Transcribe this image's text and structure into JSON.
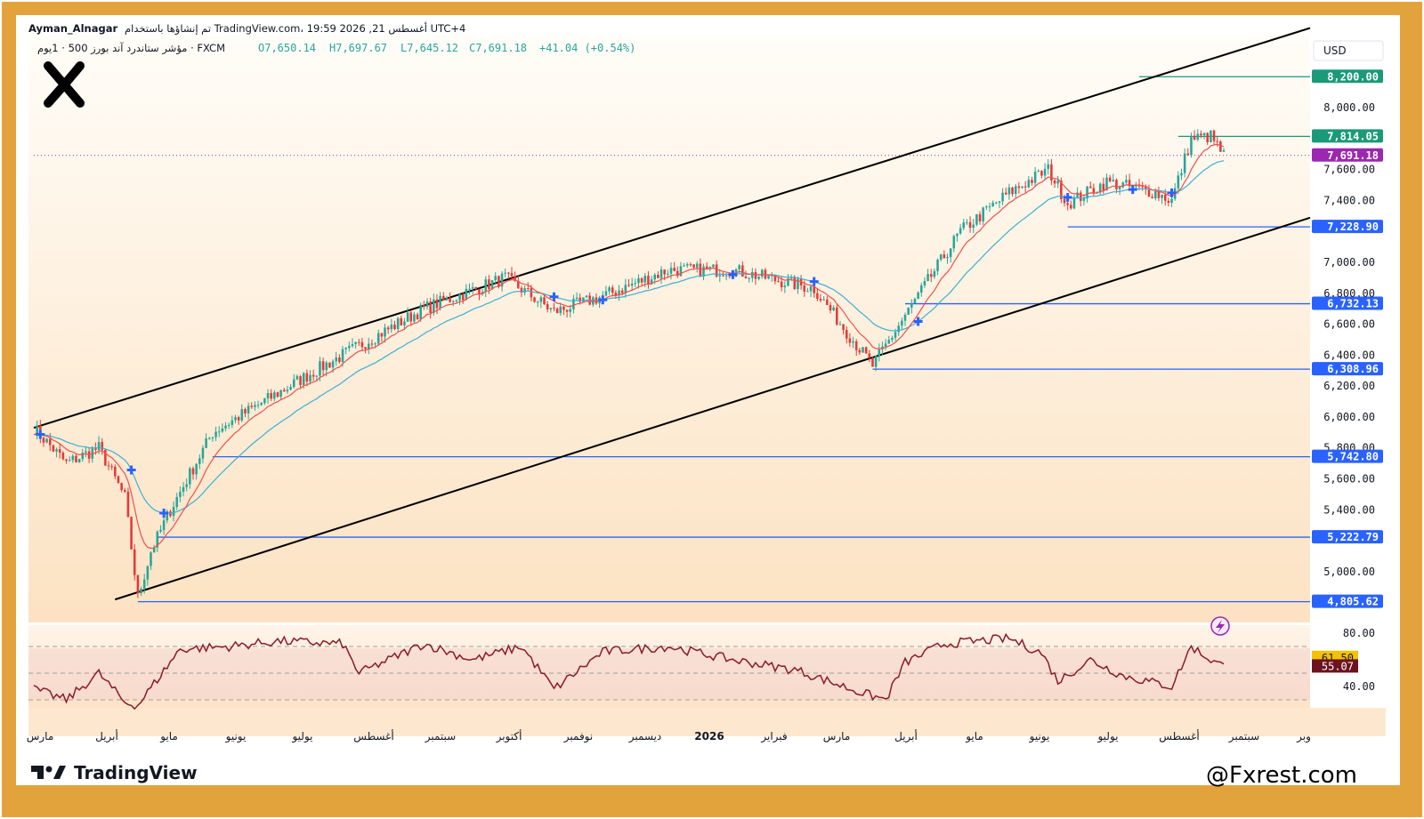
{
  "header": {
    "author": "Ayman_Alnagar",
    "published": "تم إنشاؤها باستخدام TradingView.com، 19:59 2026 ,21 أغسطس UTC+4",
    "symbol": "مؤشر ستاندرد آند بورز 500 · 1يوم · FXCM",
    "ohlc": {
      "open": "O7,650.14",
      "high": "H7,697.67",
      "low": "L7,645.12",
      "close": "C7,691.18",
      "change": "+41.04 (+0.54%)"
    }
  },
  "currency": "USD",
  "brand": {
    "tradingview": "TradingView",
    "watermark": "@Fxrest.com"
  },
  "colors": {
    "frame": "#e3a33c",
    "bull": "#26a69a",
    "bear": "#e53935",
    "ema_fast": "#f0504a",
    "ema_slow": "#3bb0d4",
    "level_line": "#2962ff",
    "level_green": "#1a9a78",
    "current_price": "#9c27b0",
    "rsi": "#8b1a2b",
    "rsi_value_bg": "#6b1420",
    "rsi_ma_bg": "#f2c200"
  },
  "chart_data": {
    "type": "candlestick",
    "title": "مؤشر ستاندرد آند بورز 500 · 1يوم · FXCM",
    "price_axis": {
      "ticks": [
        "8,000.00",
        "7,600.00",
        "7,400.00",
        "7,000.00",
        "6,800.00",
        "6,600.00",
        "6,400.00",
        "6,200.00",
        "6,000.00",
        "5,800.00",
        "5,600.00",
        "5,400.00",
        "5,000.00"
      ],
      "ylim": [
        4700,
        8420
      ]
    },
    "levels": [
      {
        "label": "8,200.00",
        "value": 8200,
        "style": "green"
      },
      {
        "label": "7,814.05",
        "value": 7814.05,
        "style": "green"
      },
      {
        "label": "7,691.18",
        "value": 7691.18,
        "style": "current"
      },
      {
        "label": "7,228.90",
        "value": 7228.9,
        "style": "blue"
      },
      {
        "label": "6,732.13",
        "value": 6732.13,
        "style": "blue"
      },
      {
        "label": "6,308.96",
        "value": 6308.96,
        "style": "blue"
      },
      {
        "label": "5,742.80",
        "value": 5742.8,
        "style": "blue"
      },
      {
        "label": "5,222.79",
        "value": 5222.79,
        "style": "blue"
      },
      {
        "label": "4,805.62",
        "value": 4805.62,
        "style": "blue"
      }
    ],
    "price_path_knots": [
      [
        0,
        5930
      ],
      [
        10,
        5700
      ],
      [
        20,
        5800
      ],
      [
        28,
        5480
      ],
      [
        32,
        4830
      ],
      [
        36,
        5130
      ],
      [
        42,
        5400
      ],
      [
        55,
        5900
      ],
      [
        85,
        6280
      ],
      [
        120,
        6700
      ],
      [
        145,
        6900
      ],
      [
        160,
        6680
      ],
      [
        175,
        6780
      ],
      [
        195,
        6950
      ],
      [
        215,
        6950
      ],
      [
        240,
        6830
      ],
      [
        258,
        6330
      ],
      [
        270,
        6720
      ],
      [
        285,
        7200
      ],
      [
        300,
        7450
      ],
      [
        312,
        7600
      ],
      [
        318,
        7380
      ],
      [
        330,
        7520
      ],
      [
        345,
        7450
      ],
      [
        350,
        7400
      ],
      [
        356,
        7800
      ],
      [
        362,
        7814
      ],
      [
        366,
        7691
      ]
    ],
    "channel": {
      "upper": [
        [
          0,
          5930
        ],
        [
          366,
          8340
        ]
      ],
      "lower": [
        [
          25,
          4820
        ],
        [
          366,
          7110
        ]
      ]
    },
    "time_axis": [
      "مارس",
      "أبريل",
      "مايو",
      "يونيو",
      "يوليو",
      "أغسطس",
      "سبتمبر",
      "أكتوبر",
      "نوفمبر",
      "ديسمبر",
      "2026",
      "فبراير",
      "مارس",
      "أبريل",
      "مايو",
      "يونيو",
      "يوليو",
      "أغسطس",
      "سبتمبر",
      "وبر"
    ],
    "rsi": {
      "ticks": [
        "80.00",
        "40.00"
      ],
      "bands": [
        70,
        50,
        30
      ],
      "ylim": [
        24,
        84
      ],
      "value_label": "55.07",
      "ma_label": "61.50",
      "path_knots": [
        [
          0,
          38
        ],
        [
          10,
          30
        ],
        [
          20,
          50
        ],
        [
          28,
          28
        ],
        [
          32,
          26
        ],
        [
          45,
          68
        ],
        [
          60,
          70
        ],
        [
          75,
          74
        ],
        [
          95,
          72
        ],
        [
          100,
          50
        ],
        [
          120,
          72
        ],
        [
          135,
          60
        ],
        [
          150,
          70
        ],
        [
          160,
          38
        ],
        [
          175,
          66
        ],
        [
          195,
          70
        ],
        [
          215,
          60
        ],
        [
          235,
          52
        ],
        [
          255,
          35
        ],
        [
          262,
          30
        ],
        [
          268,
          58
        ],
        [
          280,
          72
        ],
        [
          300,
          76
        ],
        [
          310,
          65
        ],
        [
          315,
          44
        ],
        [
          325,
          60
        ],
        [
          335,
          48
        ],
        [
          350,
          40
        ],
        [
          356,
          70
        ],
        [
          362,
          60
        ],
        [
          366,
          55
        ]
      ]
    }
  }
}
